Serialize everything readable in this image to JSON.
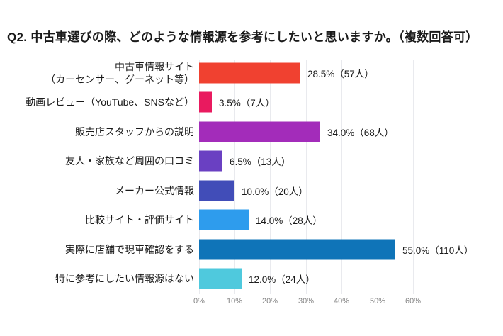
{
  "title": "Q2. 中古車選びの際、どのような情報源を参考にしたいと思いますか。（複数回答可）",
  "chart_data": {
    "type": "bar",
    "orientation": "horizontal",
    "title": "Q2. 中古車選びの際、どのような情報源を参考にしたいと思いますか。（複数回答可）",
    "xlabel": "",
    "ylabel": "",
    "xlim": [
      0,
      60
    ],
    "grid": true,
    "x_ticks": [
      "0%",
      "10%",
      "20%",
      "30%",
      "40%",
      "50%",
      "60%"
    ],
    "categories": [
      "中古車情報サイト（カーセンサー、グーネット等）",
      "動画レビュー（YouTube、SNSなど）",
      "販売店スタッフからの説明",
      "友人・家族など周囲の口コミ",
      "メーカー公式情報",
      "比較サイト・評価サイト",
      "実際に店舗で現車確認をする",
      "特に参考にしたい情報源はない"
    ],
    "values": [
      28.5,
      3.5,
      34.0,
      6.5,
      10.0,
      14.0,
      55.0,
      12.0
    ],
    "counts": [
      57,
      7,
      68,
      13,
      20,
      28,
      110,
      24
    ],
    "rows": [
      {
        "label": "中古車情報サイト\n（カーセンサー、グーネット等）",
        "percent": 28.5,
        "count": 57,
        "value_label": "28.5%（57人）",
        "color": "#f04130"
      },
      {
        "label": "動画レビュー（YouTube、SNSなど）",
        "percent": 3.5,
        "count": 7,
        "value_label": "3.5%（7人）",
        "color": "#e91a5f"
      },
      {
        "label": "販売店スタッフからの説明",
        "percent": 34.0,
        "count": 68,
        "value_label": "34.0%（68人）",
        "color": "#a32cba"
      },
      {
        "label": "友人・家族など周囲の口コミ",
        "percent": 6.5,
        "count": 13,
        "value_label": "6.5%（13人）",
        "color": "#6a40c2"
      },
      {
        "label": "メーカー公式情報",
        "percent": 10.0,
        "count": 20,
        "value_label": "10.0%（20人）",
        "color": "#414db8"
      },
      {
        "label": "比較サイト・評価サイト",
        "percent": 14.0,
        "count": 28,
        "value_label": "14.0%（28人）",
        "color": "#2e9ced"
      },
      {
        "label": "実際に店舗で現車確認をする",
        "percent": 55.0,
        "count": 110,
        "value_label": "55.0%（110人）",
        "color": "#0f74b8"
      },
      {
        "label": "特に参考にしたい情報源はない",
        "percent": 12.0,
        "count": 24,
        "value_label": "12.0%（24人）",
        "color": "#4fc9dd"
      }
    ],
    "colors": {
      "gridline": "#e9eaee",
      "tick_label": "#848484",
      "text": "#1a1a1a"
    },
    "legend": null
  }
}
